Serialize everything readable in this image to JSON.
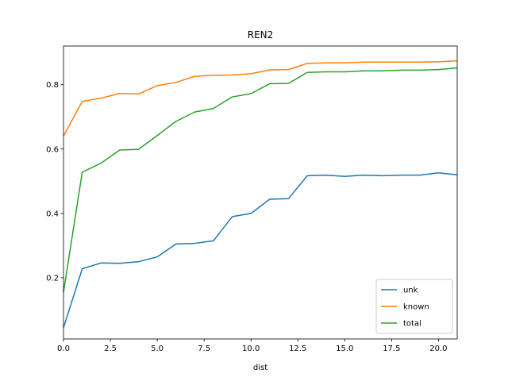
{
  "chart_data": {
    "type": "line",
    "title": "REN2",
    "xlabel": "dist",
    "ylabel": "",
    "xlim": [
      0,
      21
    ],
    "ylim": [
      0.01,
      0.92
    ],
    "xticks": [
      0,
      2.5,
      5,
      7.5,
      10,
      12.5,
      15,
      17.5,
      20
    ],
    "xtick_labels": [
      "0.0",
      "2.5",
      "5.0",
      "7.5",
      "10.0",
      "12.5",
      "15.0",
      "17.5",
      "20.0"
    ],
    "yticks": [
      0.2,
      0.4,
      0.6,
      0.8
    ],
    "ytick_labels": [
      "0.2",
      "0.4",
      "0.6",
      "0.8"
    ],
    "grid": false,
    "legend_position": "lower-right",
    "x": [
      0,
      1,
      2,
      3,
      4,
      5,
      6,
      7,
      8,
      9,
      10,
      11,
      12,
      13,
      14,
      15,
      16,
      17,
      18,
      19,
      20,
      21
    ],
    "series": [
      {
        "name": "unk",
        "color": "#1f77b4",
        "values": [
          0.045,
          0.228,
          0.246,
          0.245,
          0.25,
          0.265,
          0.305,
          0.307,
          0.315,
          0.39,
          0.4,
          0.444,
          0.446,
          0.517,
          0.519,
          0.515,
          0.519,
          0.517,
          0.519,
          0.519,
          0.526,
          0.52
        ]
      },
      {
        "name": "known",
        "color": "#ff7f0e",
        "values": [
          0.64,
          0.748,
          0.758,
          0.773,
          0.771,
          0.797,
          0.807,
          0.826,
          0.829,
          0.83,
          0.834,
          0.846,
          0.847,
          0.866,
          0.868,
          0.868,
          0.87,
          0.87,
          0.87,
          0.87,
          0.871,
          0.874
        ]
      },
      {
        "name": "total",
        "color": "#2ca02c",
        "values": [
          0.155,
          0.528,
          0.556,
          0.597,
          0.599,
          0.642,
          0.686,
          0.715,
          0.726,
          0.762,
          0.772,
          0.803,
          0.804,
          0.838,
          0.84,
          0.84,
          0.843,
          0.843,
          0.845,
          0.845,
          0.847,
          0.852
        ]
      }
    ]
  }
}
